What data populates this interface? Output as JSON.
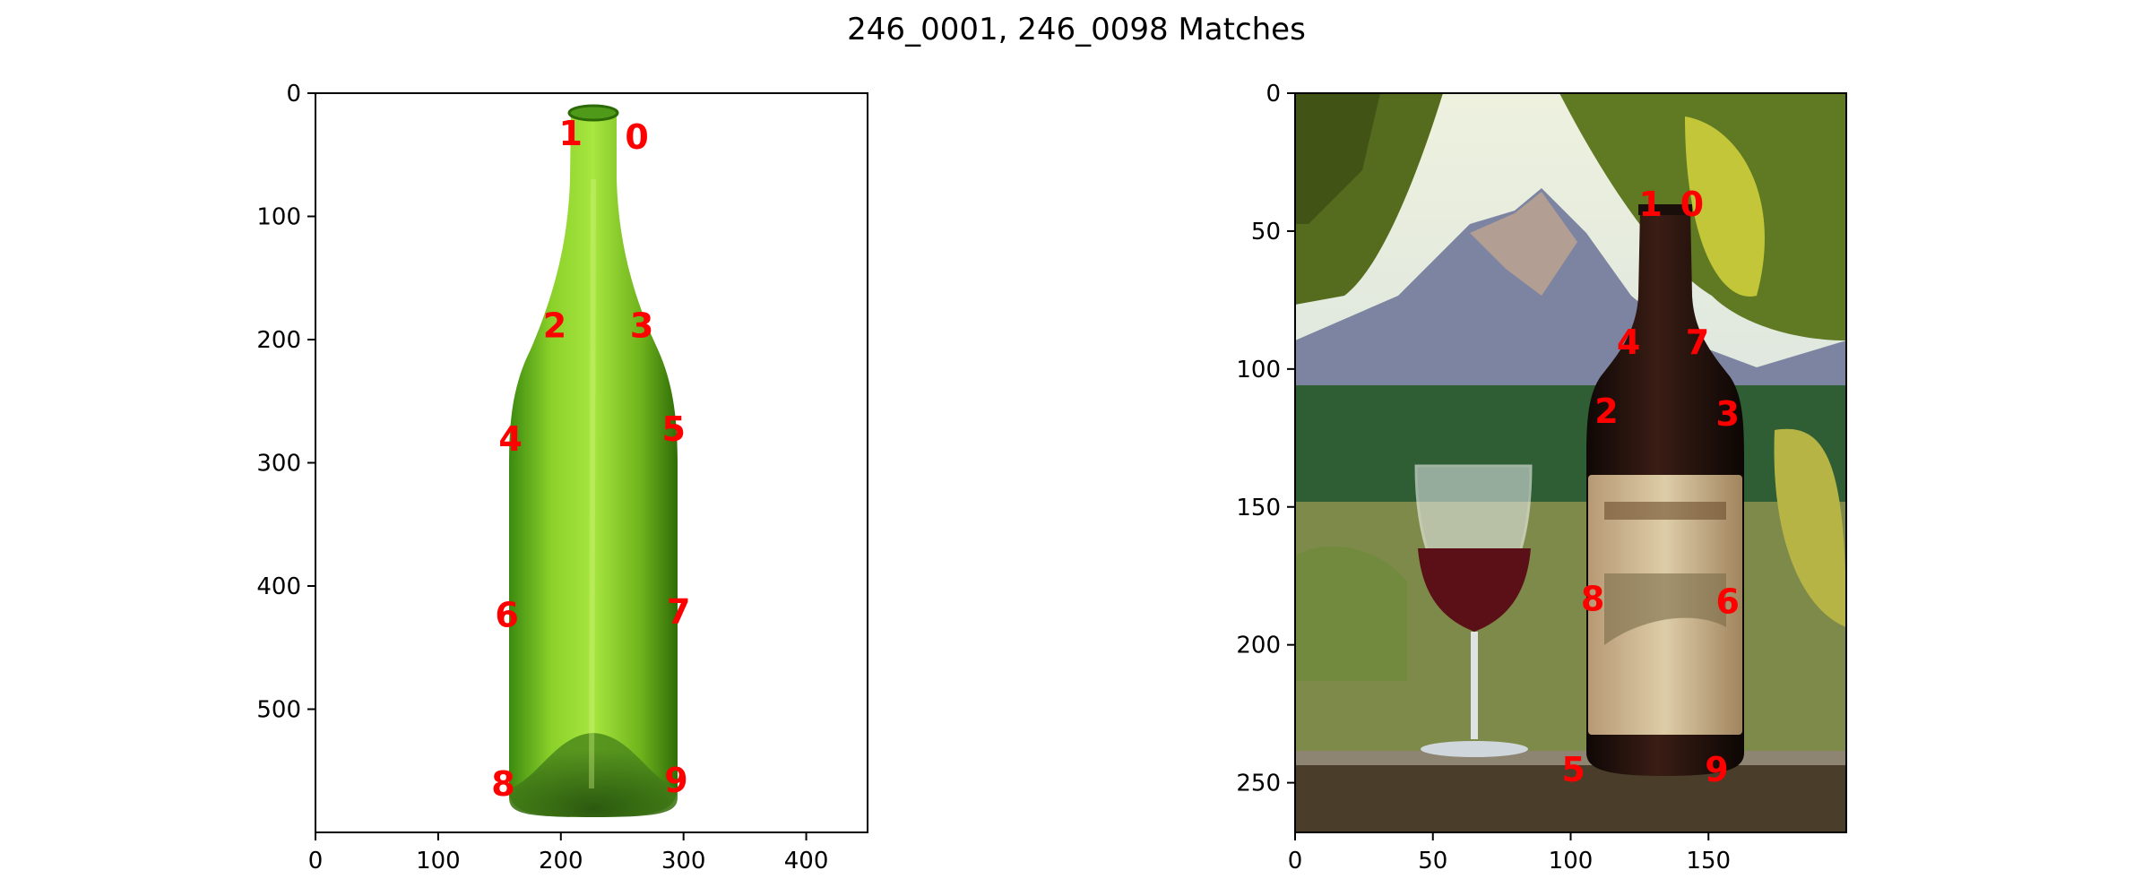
{
  "title": "246_0001, 246_0098 Matches",
  "colors": {
    "keypoint_label": "#ff0000",
    "axes": "#000000",
    "background": "#ffffff"
  },
  "chart_data": [
    {
      "type": "scatter",
      "image": "green empty wine bottle on white background",
      "xlim": [
        0,
        450
      ],
      "ylim": [
        600,
        0
      ],
      "xticks": [
        0,
        100,
        200,
        300,
        400
      ],
      "yticks": [
        0,
        100,
        200,
        300,
        400,
        500
      ],
      "points": [
        {
          "label": "0",
          "x": 262,
          "y": 35
        },
        {
          "label": "1",
          "x": 208,
          "y": 32
        },
        {
          "label": "2",
          "x": 195,
          "y": 188
        },
        {
          "label": "3",
          "x": 266,
          "y": 188
        },
        {
          "label": "4",
          "x": 159,
          "y": 280
        },
        {
          "label": "5",
          "x": 292,
          "y": 272
        },
        {
          "label": "6",
          "x": 156,
          "y": 423
        },
        {
          "label": "7",
          "x": 296,
          "y": 420
        },
        {
          "label": "8",
          "x": 153,
          "y": 560
        },
        {
          "label": "9",
          "x": 294,
          "y": 557
        }
      ]
    },
    {
      "type": "scatter",
      "image": "wine bottle and glass in vineyard",
      "xlim": [
        0,
        200
      ],
      "ylim": [
        268,
        0
      ],
      "xticks": [
        0,
        50,
        100,
        150
      ],
      "yticks": [
        0,
        50,
        100,
        150,
        200,
        250
      ],
      "points": [
        {
          "label": "0",
          "x": 144,
          "y": 40
        },
        {
          "label": "1",
          "x": 129,
          "y": 40
        },
        {
          "label": "2",
          "x": 113,
          "y": 115
        },
        {
          "label": "3",
          "x": 157,
          "y": 116
        },
        {
          "label": "4",
          "x": 121,
          "y": 90
        },
        {
          "label": "5",
          "x": 101,
          "y": 245
        },
        {
          "label": "6",
          "x": 157,
          "y": 184
        },
        {
          "label": "7",
          "x": 146,
          "y": 90
        },
        {
          "label": "8",
          "x": 108,
          "y": 183
        },
        {
          "label": "9",
          "x": 153,
          "y": 245
        }
      ]
    }
  ]
}
